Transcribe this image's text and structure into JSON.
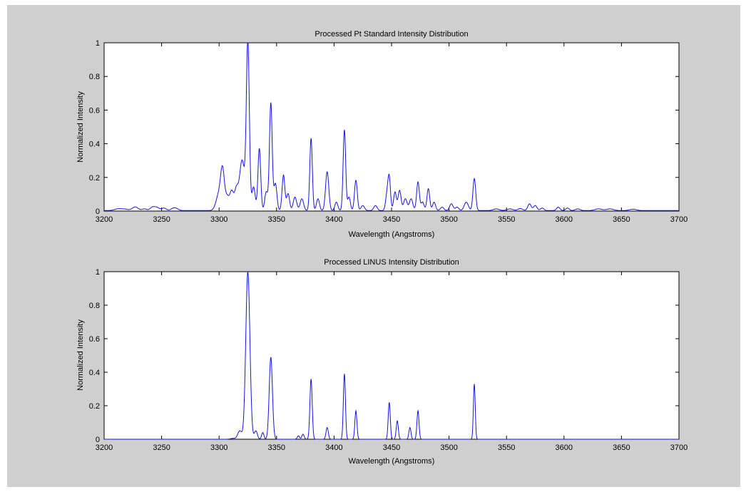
{
  "figure": {
    "background": "#cfcfcf",
    "line_color": "#1414e6"
  },
  "chart_data": [
    {
      "type": "line",
      "title": "Processed Pt Standard Intensity Distribution",
      "xlabel": "Wavelength (Angstroms)",
      "ylabel": "Normalized Intensity",
      "xlim": [
        3200,
        3700
      ],
      "ylim": [
        0,
        1
      ],
      "xticks": [
        "3200",
        "3250",
        "3300",
        "3350",
        "3400",
        "3450",
        "3500",
        "3550",
        "3600",
        "3650",
        "3700"
      ],
      "yticks": [
        "0",
        "0.2",
        "0.4",
        "0.6",
        "0.8",
        "1"
      ],
      "grid": false,
      "series": [
        {
          "color": "#1414e6",
          "baseline": 0.003,
          "peaks": [
            [
              3212,
              0.01,
              3
            ],
            [
              3218,
              0.008,
              3
            ],
            [
              3227,
              0.022,
              2.5
            ],
            [
              3235,
              0.01,
              2
            ],
            [
              3242,
              0.02,
              2
            ],
            [
              3246,
              0.018,
              2
            ],
            [
              3252,
              0.015,
              2
            ],
            [
              3260,
              0.012,
              2
            ],
            [
              3263,
              0.01,
              2
            ],
            [
              3300,
              0.1,
              2.5
            ],
            [
              3303,
              0.21,
              1.6
            ],
            [
              3307,
              0.08,
              1.8
            ],
            [
              3311,
              0.11,
              1.6
            ],
            [
              3315,
              0.12,
              1.6
            ],
            [
              3320,
              0.3,
              2.2
            ],
            [
              3325,
              1.0,
              1.3
            ],
            [
              3330,
              0.14,
              1.4
            ],
            [
              3335,
              0.37,
              1.2
            ],
            [
              3341,
              0.11,
              1.3
            ],
            [
              3345,
              0.64,
              1.2
            ],
            [
              3349,
              0.16,
              1.3
            ],
            [
              3356,
              0.21,
              1.2
            ],
            [
              3360,
              0.1,
              1.3
            ],
            [
              3366,
              0.08,
              1.5
            ],
            [
              3372,
              0.07,
              1.5
            ],
            [
              3380,
              0.43,
              1.1
            ],
            [
              3386,
              0.07,
              1.3
            ],
            [
              3394,
              0.23,
              1.4
            ],
            [
              3402,
              0.05,
              1.3
            ],
            [
              3409,
              0.48,
              1.1
            ],
            [
              3413,
              0.08,
              1.2
            ],
            [
              3419,
              0.18,
              1.2
            ],
            [
              3425,
              0.03,
              1.5
            ],
            [
              3436,
              0.03,
              1.5
            ],
            [
              3446,
              0.09,
              1.2
            ],
            [
              3448,
              0.19,
              1.1
            ],
            [
              3453,
              0.11,
              1.2
            ],
            [
              3457,
              0.12,
              1.3
            ],
            [
              3462,
              0.07,
              1.5
            ],
            [
              3467,
              0.07,
              1.5
            ],
            [
              3473,
              0.17,
              1.2
            ],
            [
              3477,
              0.05,
              1.3
            ],
            [
              3482,
              0.13,
              1.2
            ],
            [
              3487,
              0.05,
              1.3
            ],
            [
              3494,
              0.02,
              1.5
            ],
            [
              3502,
              0.04,
              1.5
            ],
            [
              3507,
              0.02,
              1.5
            ],
            [
              3515,
              0.05,
              1.8
            ],
            [
              3522,
              0.19,
              1.2
            ],
            [
              3541,
              0.01,
              2.5
            ],
            [
              3553,
              0.01,
              2.5
            ],
            [
              3562,
              0.012,
              2
            ],
            [
              3570,
              0.04,
              1.5
            ],
            [
              3575,
              0.03,
              1.5
            ],
            [
              3581,
              0.015,
              1.5
            ],
            [
              3595,
              0.02,
              1.5
            ],
            [
              3603,
              0.015,
              1.5
            ],
            [
              3612,
              0.01,
              2
            ],
            [
              3630,
              0.01,
              3
            ],
            [
              3640,
              0.01,
              3
            ],
            [
              3660,
              0.008,
              3
            ]
          ]
        }
      ]
    },
    {
      "type": "line",
      "title": "Processed LINUS Intensity Distribution",
      "xlabel": "Wavelength (Angstroms)",
      "ylabel": "Normalized Intensity",
      "xlim": [
        3200,
        3700
      ],
      "ylim": [
        0,
        1
      ],
      "xticks": [
        "3200",
        "3250",
        "3300",
        "3350",
        "3400",
        "3450",
        "3500",
        "3550",
        "3600",
        "3650",
        "3700"
      ],
      "yticks": [
        "0",
        "0.2",
        "0.4",
        "0.6",
        "0.8",
        "1"
      ],
      "grid": false,
      "series": [
        {
          "color": "#1414e6",
          "baseline": 0,
          "peaks": [
            [
              3312,
              0.005,
              2
            ],
            [
              3318,
              0.05,
              1.8
            ],
            [
              3325,
              1.0,
              1.8
            ],
            [
              3332,
              0.05,
              1.3
            ],
            [
              3338,
              0.04,
              1.0
            ],
            [
              3345,
              0.49,
              1.4
            ],
            [
              3369,
              0.02,
              1.0
            ],
            [
              3373,
              0.03,
              1.0
            ],
            [
              3380,
              0.36,
              1.0
            ],
            [
              3394,
              0.07,
              1.0
            ],
            [
              3409,
              0.39,
              0.9
            ],
            [
              3419,
              0.17,
              0.9
            ],
            [
              3448,
              0.22,
              0.9
            ],
            [
              3455,
              0.11,
              0.9
            ],
            [
              3466,
              0.07,
              0.9
            ],
            [
              3473,
              0.17,
              0.9
            ],
            [
              3522,
              0.33,
              0.8
            ]
          ]
        }
      ]
    }
  ]
}
